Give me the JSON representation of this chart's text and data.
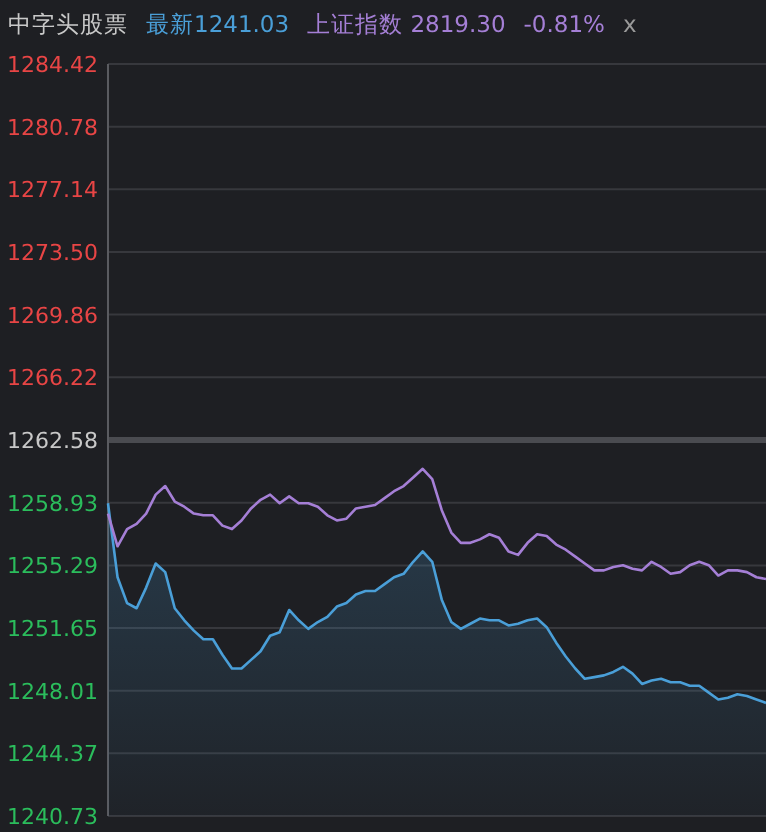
{
  "chart_data": {
    "type": "line",
    "title": "中字头股票",
    "categories": [
      null,
      null,
      null,
      null,
      null,
      null,
      null,
      null,
      null,
      null,
      null,
      null,
      null,
      null,
      null,
      null,
      null,
      null,
      null,
      null,
      null,
      null,
      null,
      null,
      null,
      null,
      null,
      null,
      null,
      null,
      null,
      null,
      null,
      null,
      null,
      null,
      null,
      null,
      null,
      null,
      null,
      null,
      null,
      null,
      null,
      null,
      null,
      null,
      null,
      null,
      null,
      null,
      null,
      null,
      null,
      null,
      null,
      null,
      null,
      null,
      null,
      null,
      null,
      null,
      null,
      null,
      null,
      null,
      null,
      null
    ],
    "series": [
      {
        "name": "最新1241.03",
        "type": "area",
        "color": "#4a9fd8",
        "values": [
          1258.9,
          1254.6,
          1253.1,
          1252.8,
          1254.0,
          1255.4,
          1254.9,
          1252.8,
          1252.1,
          1251.5,
          1251.0,
          1251.0,
          1250.1,
          1249.3,
          1249.3,
          1249.8,
          1250.3,
          1251.2,
          1251.4,
          1252.7,
          1252.1,
          1251.6,
          1252.0,
          1252.3,
          1252.9,
          1253.1,
          1253.6,
          1253.8,
          1253.8,
          1254.2,
          1254.6,
          1254.8,
          1255.5,
          1256.1,
          1255.5,
          1253.3,
          1252.0,
          1251.6,
          1251.9,
          1252.2,
          1252.1,
          1252.1,
          1251.8,
          1251.9,
          1252.1,
          1252.2,
          1251.7,
          1250.8,
          1250.0,
          1249.3,
          1248.7,
          1248.8,
          1248.9,
          1249.1,
          1249.4,
          1249.0,
          1248.4,
          1248.6,
          1248.7,
          1248.5,
          1248.5,
          1248.3,
          1248.3,
          1247.9,
          1247.5,
          1247.6,
          1247.8,
          1247.7,
          1247.5,
          1247.3
        ]
      },
      {
        "name": "上证指数 2819.30",
        "color": "#a57fd6",
        "values": [
          1258.3,
          1256.4,
          1257.4,
          1257.7,
          1258.3,
          1259.4,
          1259.9,
          1259.0,
          1258.7,
          1258.3,
          1258.2,
          1258.2,
          1257.6,
          1257.4,
          1257.9,
          1258.6,
          1259.1,
          1259.4,
          1258.9,
          1259.3,
          1258.9,
          1258.9,
          1258.7,
          1258.2,
          1257.9,
          1258.0,
          1258.6,
          1258.7,
          1258.8,
          1259.2,
          1259.6,
          1259.9,
          1260.4,
          1260.9,
          1260.3,
          1258.5,
          1257.2,
          1256.6,
          1256.6,
          1256.8,
          1257.1,
          1256.9,
          1256.1,
          1255.9,
          1256.6,
          1257.1,
          1257.0,
          1256.5,
          1256.2,
          1255.8,
          1255.4,
          1255.0,
          1255.0,
          1255.2,
          1255.3,
          1255.1,
          1255.0,
          1255.5,
          1255.2,
          1254.8,
          1254.9,
          1255.3,
          1255.5,
          1255.3,
          1254.7,
          1255.0,
          1255.0,
          1254.9,
          1254.6,
          1254.5
        ]
      }
    ],
    "annotations": [
      "-0.81%",
      "x"
    ],
    "ylim": [
      1240.73,
      1284.42
    ],
    "yticks": [
      1284.42,
      1280.78,
      1277.14,
      {
        "value": 1273.5,
        "label": "1273.50"
      },
      1269.86,
      1266.22,
      1262.58,
      1258.93,
      1255.29,
      1251.65,
      1248.01,
      1244.37,
      1240.73
    ],
    "ref_lines": [
      {
        "axis": "y",
        "value": 1262.58,
        "color": "#4a4b50"
      }
    ],
    "grid": "y",
    "legend": "top"
  }
}
